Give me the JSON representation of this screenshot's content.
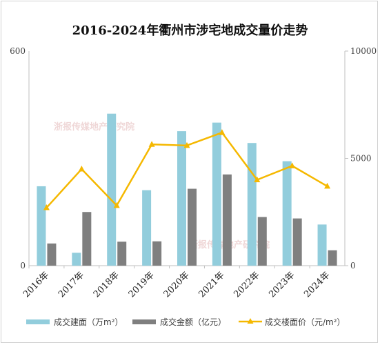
{
  "chart_data": {
    "type": "bar",
    "title": "2016-2024年衢州市涉宅地成交量价走势",
    "categories": [
      "2016年",
      "2017年",
      "2018年",
      "2019年",
      "2020年",
      "2021年",
      "2022年",
      "2023年",
      "2024年"
    ],
    "y_left": {
      "ticks": [
        "0",
        "600"
      ],
      "ylim": [
        0,
        600
      ]
    },
    "y_right": {
      "ticks": [
        "0",
        "5000",
        "10000"
      ],
      "ylim": [
        0,
        10000
      ]
    },
    "series": [
      {
        "name": "成交建面（万m²）",
        "type": "bar",
        "axis": "left",
        "color": "#92cddc",
        "values": [
          222,
          36,
          425,
          211,
          376,
          400,
          343,
          292,
          115
        ]
      },
      {
        "name": "成交金额（亿元）",
        "type": "bar",
        "axis": "left",
        "color": "#7f7f7f",
        "values": [
          62,
          150,
          67,
          68,
          215,
          255,
          136,
          132,
          43
        ]
      },
      {
        "name": "成交楼面价（元/m²）",
        "type": "line",
        "axis": "right",
        "color": "#f5b800",
        "values": [
          2700,
          4500,
          2800,
          5650,
          5600,
          6200,
          4000,
          4650,
          3700
        ]
      }
    ],
    "legend_position": "bottom"
  },
  "watermark": "浙报传媒地产研究院"
}
